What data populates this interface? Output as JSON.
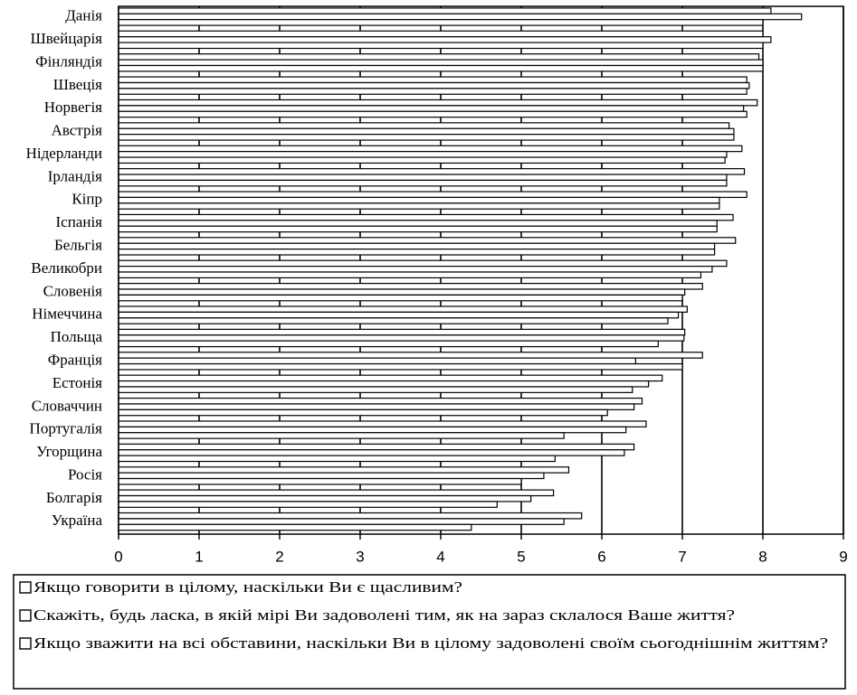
{
  "chart_data": {
    "type": "bar",
    "orientation": "horizontal",
    "categories": [
      "Данія",
      "Швейцарія",
      "Фінляндія",
      "Швеція",
      "Норвегія",
      "Австрія",
      "Нідерланди",
      "Ірландія",
      "Кіпр",
      "Іспанія",
      "Бельгія",
      "Великобри",
      "Словенія",
      "Німеччина",
      "Польща",
      "Франція",
      "Естонія",
      "Словаччин",
      "Португалія",
      "Угорщина",
      "Росія",
      "Болгарія",
      "Україна"
    ],
    "series": [
      {
        "name": "Якщо говорити в цілому, наскільки Ви є щасливим?",
        "values": [
          8.1,
          8.0,
          7.95,
          7.8,
          7.93,
          7.58,
          7.74,
          7.77,
          7.8,
          7.63,
          7.66,
          7.55,
          7.25,
          7.06,
          7.03,
          7.25,
          6.75,
          6.5,
          6.55,
          6.4,
          5.59,
          5.4,
          5.75
        ]
      },
      {
        "name": "Скажіть, будь ласка, в якій мірі Ви задоволені тим, як на зараз склалося Ваше життя?",
        "values": [
          8.48,
          8.1,
          8.0,
          7.83,
          7.76,
          7.64,
          7.55,
          7.55,
          7.46,
          7.43,
          7.4,
          7.37,
          7.03,
          6.95,
          7.02,
          6.42,
          6.58,
          6.4,
          6.3,
          6.28,
          5.28,
          5.12,
          5.53
        ]
      },
      {
        "name": "Якщо зважити на всі обставини, наскільки Ви в цілому задоволені своїм сьогоднішнім життям?",
        "values": [
          8.0,
          8.0,
          8.0,
          7.8,
          7.8,
          7.64,
          7.53,
          7.55,
          7.46,
          7.43,
          7.4,
          7.23,
          7.0,
          6.82,
          6.7,
          7.0,
          6.38,
          6.07,
          5.53,
          5.42,
          5.0,
          4.7,
          4.38
        ]
      }
    ],
    "xlim": [
      0,
      9
    ],
    "xticks": [
      "0",
      "1",
      "2",
      "3",
      "4",
      "5",
      "6",
      "7",
      "8",
      "9"
    ],
    "grid": "vertical",
    "legend": "bottom",
    "legend_marker_color": "#ffffff",
    "bar_fill": "#ffffff",
    "bar_stroke": "#000000"
  }
}
